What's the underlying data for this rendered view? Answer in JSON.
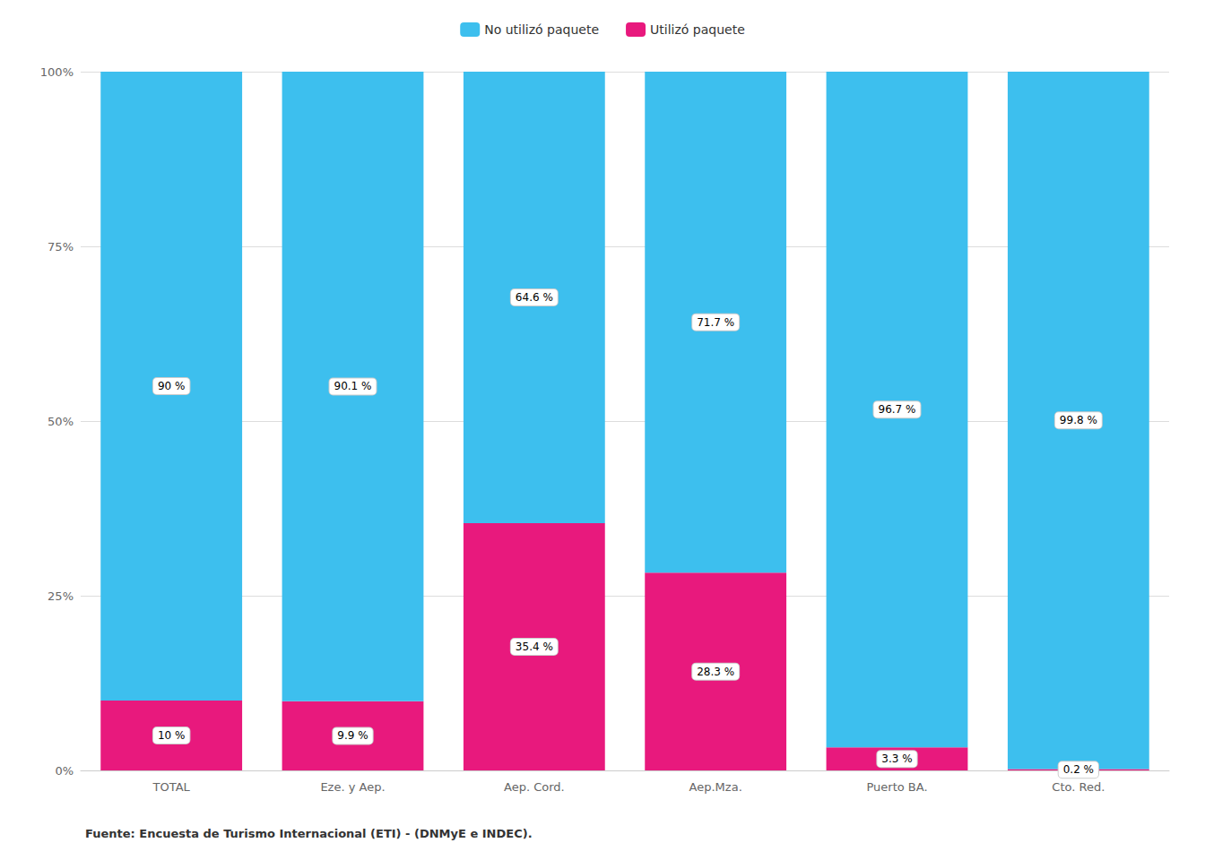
{
  "chart_data": {
    "type": "bar",
    "stacked": true,
    "categories": [
      "TOTAL",
      "Eze. y Aep.",
      "Aep. Cord.",
      "Aep.Mza.",
      "Puerto BA.",
      "Cto. Red."
    ],
    "series": [
      {
        "name": "Utilizó paquete",
        "color": "#e8197d",
        "values": [
          10.0,
          9.9,
          35.4,
          28.3,
          3.3,
          0.2
        ],
        "value_labels": [
          "10 %",
          "9.9 %",
          "35.4 %",
          "28.3 %",
          "3.3 %",
          "0.2 %"
        ]
      },
      {
        "name": "No utilizó paquete",
        "color": "#3dbfee",
        "values": [
          90.0,
          90.1,
          64.6,
          71.7,
          96.7,
          99.8
        ],
        "value_labels": [
          "90 %",
          "90.1 %",
          "64.6 %",
          "71.7 %",
          "96.7 %",
          "99.8 %"
        ]
      }
    ],
    "ylim": [
      0,
      100
    ],
    "yticks": [
      {
        "value": 0,
        "label": "0%"
      },
      {
        "value": 25,
        "label": "25%"
      },
      {
        "value": 50,
        "label": "50%"
      },
      {
        "value": 75,
        "label": "75%"
      },
      {
        "value": 100,
        "label": "100%"
      }
    ],
    "grid": true,
    "legend": "top",
    "data_labels": true,
    "footnote": "Fuente: Encuesta de Turismo Internacional (ETI) - (DNMyE e INDEC)."
  }
}
